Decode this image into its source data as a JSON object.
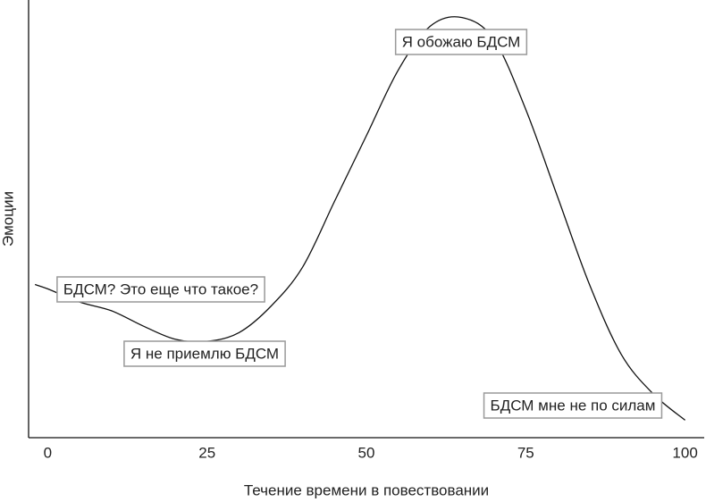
{
  "chart_data": {
    "type": "line",
    "x_label": "Течение времени в повествовании",
    "y_label": "Эмоции",
    "x": [
      -2,
      0,
      5,
      10,
      15,
      20,
      25,
      30,
      35,
      40,
      45,
      50,
      55,
      60,
      65,
      70,
      75,
      80,
      85,
      90,
      95,
      100
    ],
    "series": [
      {
        "color": "#111111",
        "values": [
          35,
          34,
          31,
          29,
          25.5,
          22.5,
          22,
          24,
          30,
          39,
          54,
          69,
          84,
          94,
          96,
          91,
          75,
          55,
          35,
          19,
          10,
          4
        ]
      }
    ],
    "xlim": [
      -3,
      103
    ],
    "ylim": [
      0,
      100
    ],
    "xticks": [
      0,
      25,
      50,
      75,
      100
    ],
    "annotations": [
      {
        "text": "БДСМ? Это еще что такое?",
        "x": 0
      },
      {
        "text": "Я не приемлю БДСМ",
        "x": 20
      },
      {
        "text": "Я обожаю БДСМ",
        "x": 60
      },
      {
        "text": "БДСМ мне не по силам",
        "x": 95
      }
    ]
  }
}
